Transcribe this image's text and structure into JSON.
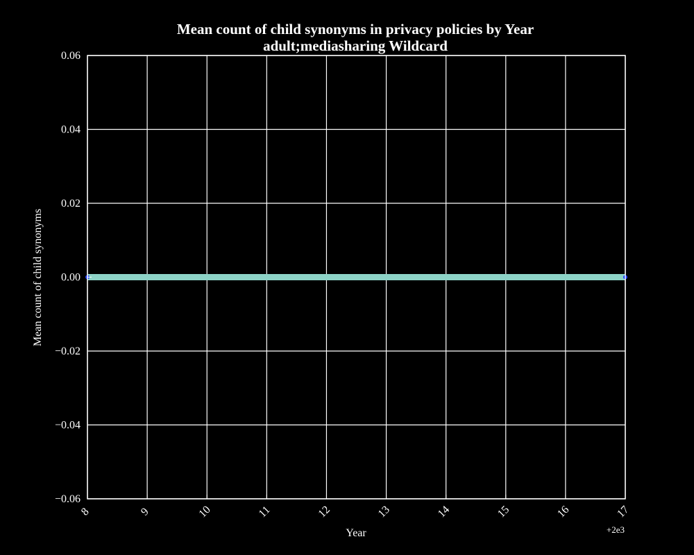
{
  "chart_data": {
    "type": "line",
    "title": "Mean count of child synonyms in privacy policies by Year",
    "subtitle": "adult;mediasharing Wildcard",
    "xlabel": "Year",
    "ylabel": "Mean count of child synonyms",
    "x_offset_label": "+2e3",
    "xlim": [
      8,
      17
    ],
    "ylim": [
      -0.06,
      0.06
    ],
    "x_ticks": [
      8,
      9,
      10,
      11,
      12,
      13,
      14,
      15,
      16,
      17
    ],
    "x_tick_labels": [
      "8",
      "9",
      "10",
      "11",
      "12",
      "13",
      "14",
      "15",
      "16",
      "17"
    ],
    "y_ticks": [
      -0.06,
      -0.04,
      -0.02,
      0.0,
      0.02,
      0.04,
      0.06
    ],
    "y_tick_labels": [
      "−0.06",
      "−0.04",
      "−0.02",
      "0.00",
      "0.02",
      "0.04",
      "0.06"
    ],
    "grid": true,
    "series": [
      {
        "x": [
          8,
          9,
          10,
          11,
          12,
          13,
          14,
          15,
          16,
          17
        ],
        "values": [
          0,
          0,
          0,
          0,
          0,
          0,
          0,
          0,
          0,
          0
        ],
        "color": "#8dd3c7"
      }
    ],
    "marker_color": "#1f3fff",
    "background_color": "#000000",
    "foreground_color": "#ffffff"
  }
}
